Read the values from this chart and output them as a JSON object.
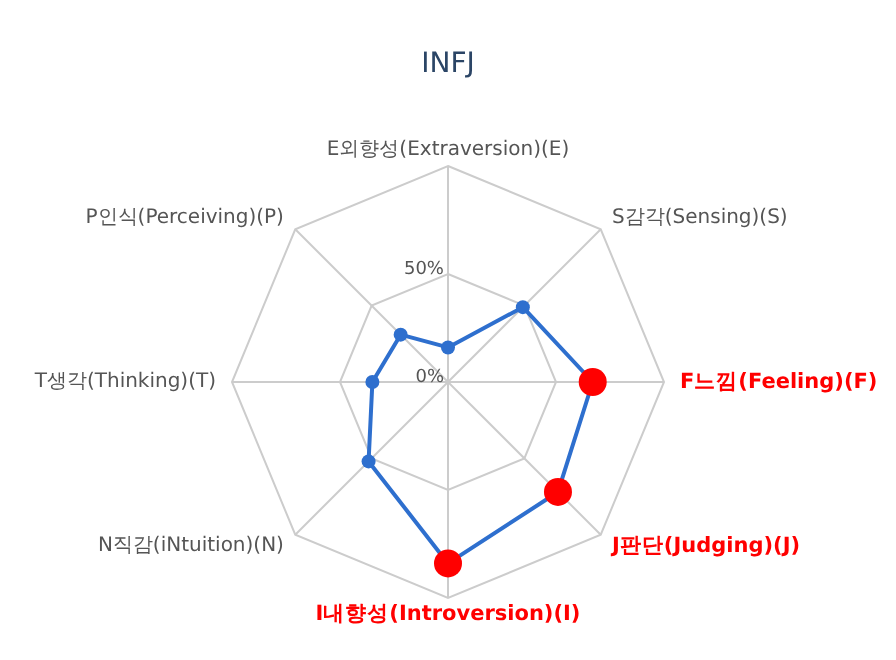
{
  "chart_data": {
    "type": "radar",
    "title": "INFJ",
    "categories": [
      "E외향성(Extraversion)(E)",
      "S감각(Sensing)(S)",
      "F느낌(Feeling)(F)",
      "J판단(Judging)(J)",
      "I내향성(Introversion)(I)",
      "N직감(iNtuition)(N)",
      "T생각(Thinking)(T)",
      "P인식(Perceiving)(P)"
    ],
    "series": [
      {
        "color": "#2e6fce",
        "values": [
          16,
          49,
          67,
          72,
          84,
          52,
          35,
          31
        ],
        "colors": [
          "#2e6fce",
          "#2e6fce",
          "#ff0000",
          "#ff0000",
          "#ff0000",
          "#2e6fce",
          "#2e6fce",
          "#2e6fce"
        ]
      }
    ],
    "ylim": [
      0,
      100
    ],
    "yticks": [
      {
        "value": 0,
        "label": "0%"
      },
      {
        "value": 50,
        "label": "50%"
      }
    ],
    "grid": true,
    "marker": "circle"
  }
}
